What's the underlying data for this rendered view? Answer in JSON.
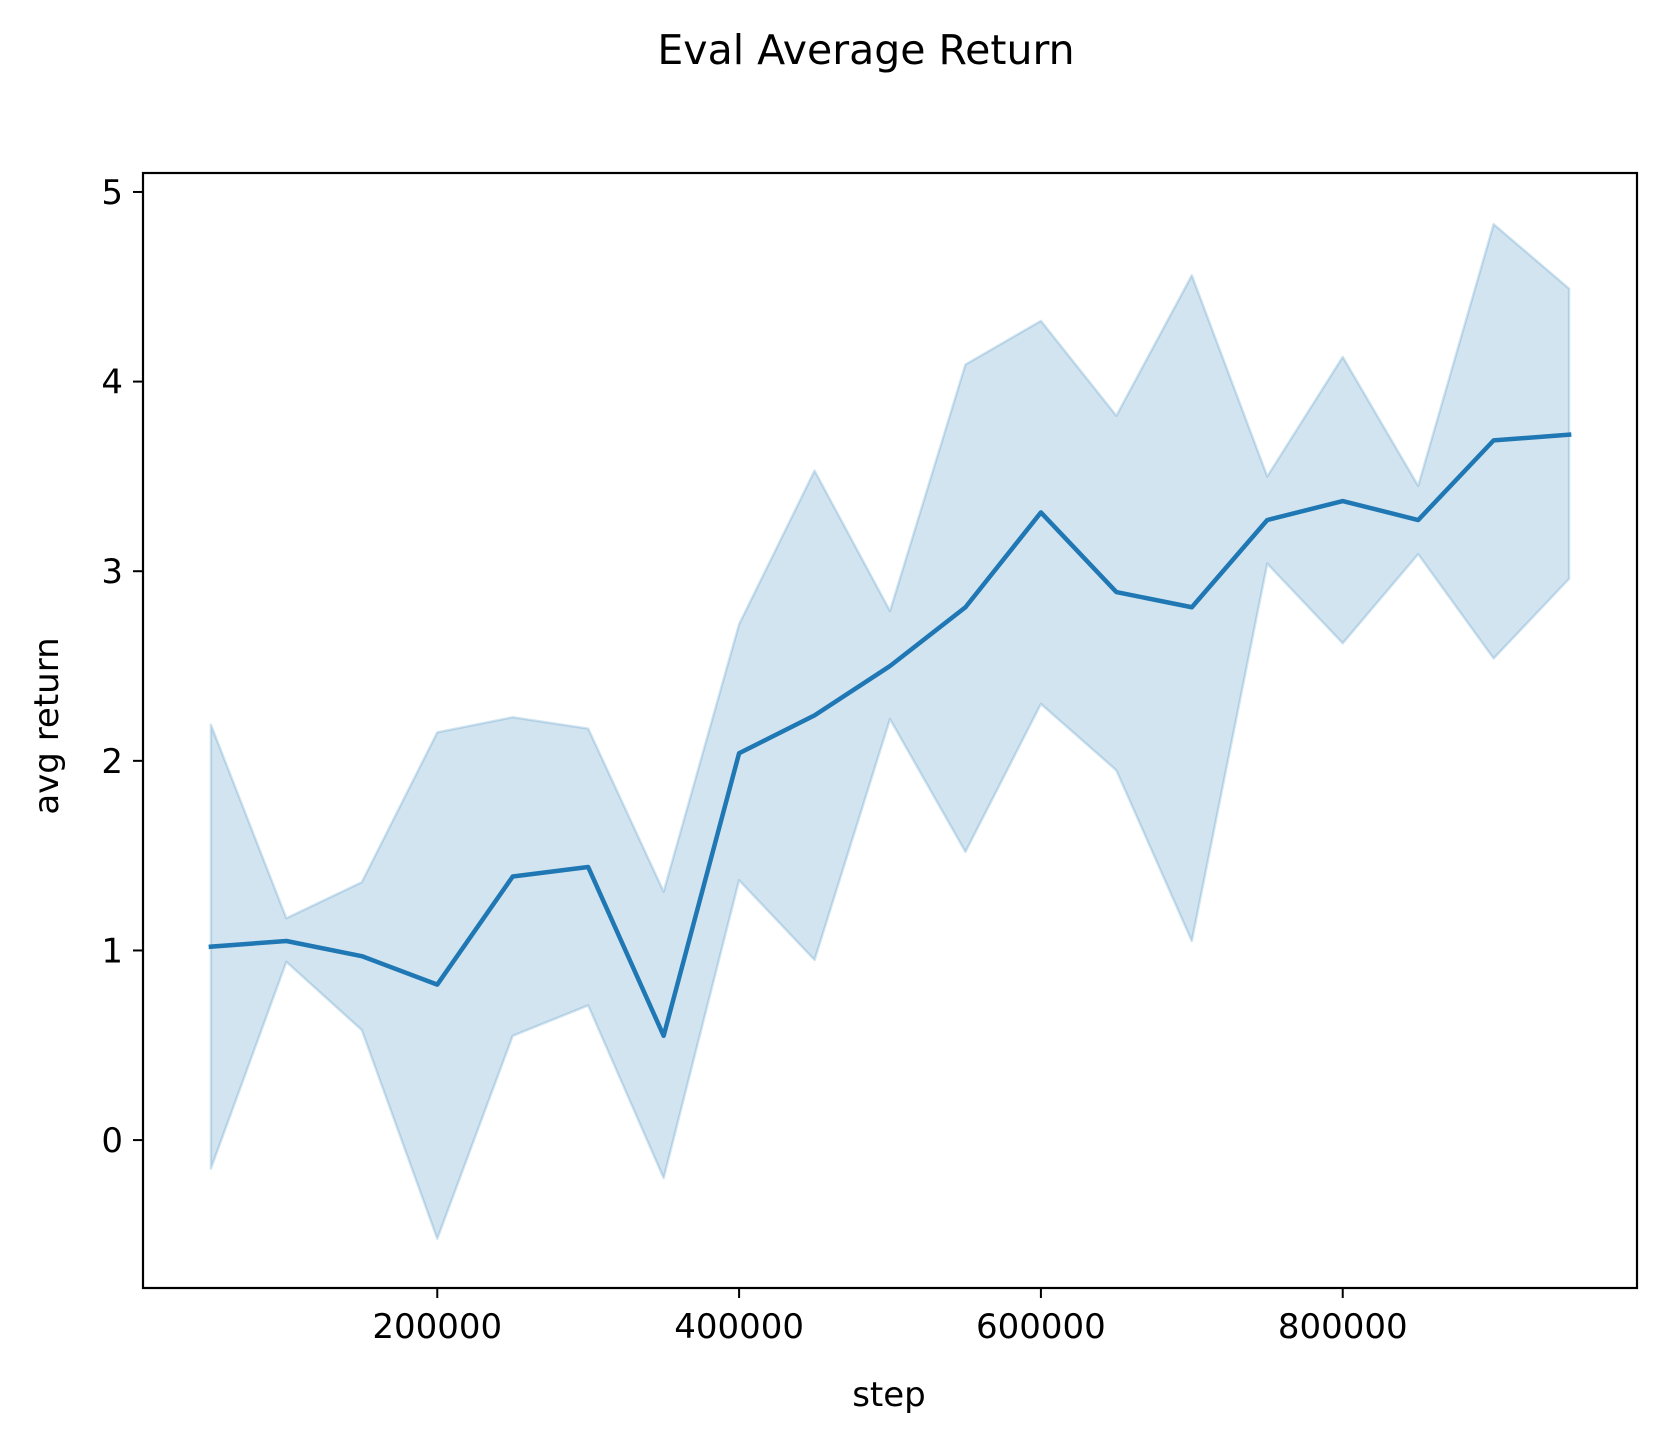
{
  "chart_data": {
    "type": "line",
    "title": "Eval Average Return",
    "xlabel": "step",
    "ylabel": "avg return",
    "xlim": [
      5000,
      995000
    ],
    "ylim": [
      -0.78,
      5.1
    ],
    "xticks": [
      200000,
      400000,
      600000,
      800000
    ],
    "yticks": [
      0,
      1,
      2,
      3,
      4,
      5
    ],
    "grid": false,
    "legend": "none",
    "colors": {
      "line": "#1f77b4",
      "band": "#1f77b4"
    },
    "series": [
      {
        "x": [
          50000,
          100000,
          150000,
          200000,
          250000,
          300000,
          350000,
          400000,
          450000,
          500000,
          550000,
          600000,
          650000,
          700000,
          750000,
          800000,
          850000,
          900000,
          950000
        ],
        "values": [
          1.02,
          1.05,
          0.97,
          0.82,
          1.39,
          1.44,
          0.55,
          2.04,
          2.24,
          2.5,
          2.81,
          3.31,
          2.89,
          2.81,
          3.27,
          3.37,
          3.27,
          3.69,
          3.72
        ],
        "lower": [
          -0.15,
          0.94,
          0.58,
          -0.52,
          0.55,
          0.71,
          -0.2,
          1.37,
          0.95,
          2.22,
          1.52,
          2.3,
          1.95,
          1.05,
          3.04,
          2.62,
          3.09,
          2.54,
          2.96
        ],
        "upper": [
          2.19,
          1.17,
          1.36,
          2.15,
          2.23,
          2.17,
          1.31,
          2.72,
          3.53,
          2.79,
          4.09,
          4.32,
          3.82,
          4.56,
          3.5,
          4.13,
          3.45,
          4.83,
          4.49
        ]
      }
    ]
  }
}
